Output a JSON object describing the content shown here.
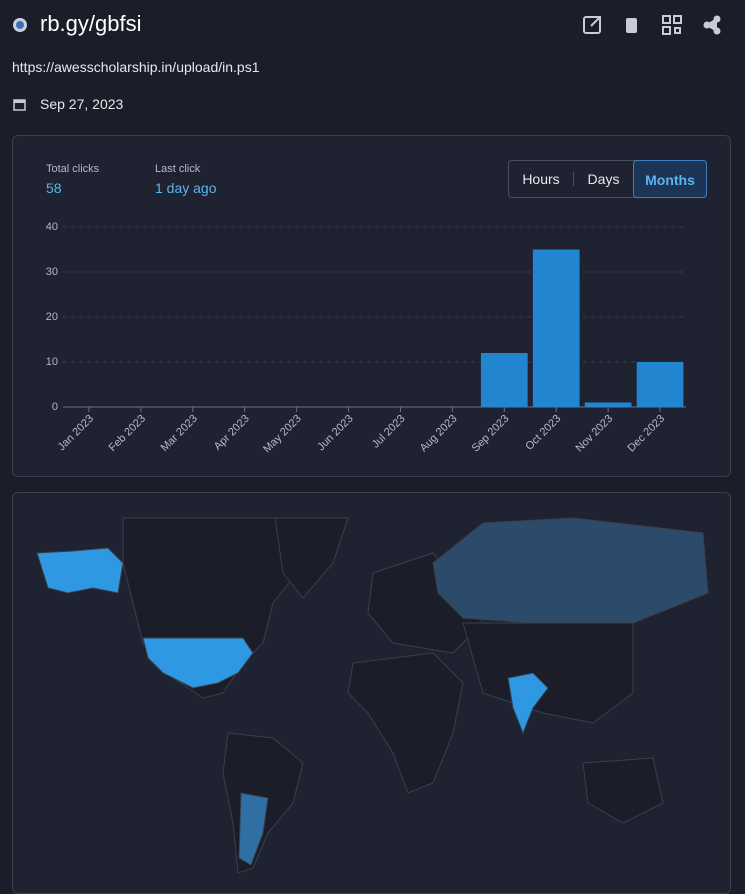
{
  "header": {
    "title": "rb.gy/gbfsi",
    "url": "https://awesscholarship.in/upload/in.ps1",
    "date": "Sep 27, 2023"
  },
  "stats": [
    {
      "label": "Total clicks",
      "value": "58"
    },
    {
      "label": "Last click",
      "value": "1 day ago"
    }
  ],
  "buttons": [
    "Hours",
    "Days",
    "Months"
  ],
  "chart_data": {
    "type": "bar",
    "categories": [
      "Jan 2023",
      "Feb 2023",
      "Mar 2023",
      "Apr 2023",
      "May 2023",
      "Jun 2023",
      "Jul 2023",
      "Aug 2023",
      "Sep 2023",
      "Oct 2023",
      "Nov 2023",
      "Dec 2023"
    ],
    "values": [
      0,
      0,
      0,
      0,
      0,
      0,
      0,
      0,
      12,
      35,
      1,
      10
    ],
    "color": "#2185d0",
    "ylim": [
      0,
      40
    ],
    "yticks": [
      0,
      10,
      20,
      30,
      40
    ],
    "grid": true
  }
}
